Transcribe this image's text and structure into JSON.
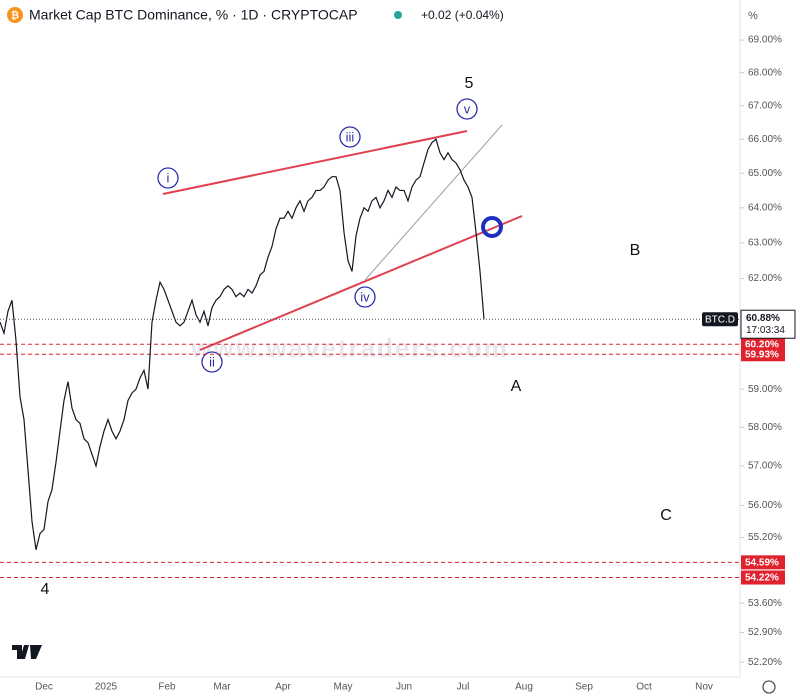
{
  "chart_data": {
    "type": "line",
    "title": "Market Cap BTC Dominance, % · 1D · CRYPTOCAP",
    "change": "+0.02 (+0.04%)",
    "unit": "%",
    "log": true,
    "ylim": [
      51.9,
      69.5
    ],
    "yticks": [
      {
        "value": 52.2,
        "label": "52.20%"
      },
      {
        "value": 52.9,
        "label": "52.90%"
      },
      {
        "value": 53.6,
        "label": "53.60%"
      },
      {
        "value": 55.2,
        "label": "55.20%"
      },
      {
        "value": 56,
        "label": "56.00%"
      },
      {
        "value": 57,
        "label": "57.00%"
      },
      {
        "value": 58,
        "label": "58.00%"
      },
      {
        "value": 59,
        "label": "59.00%"
      },
      {
        "value": 62,
        "label": "62.00%"
      },
      {
        "value": 63,
        "label": "63.00%"
      },
      {
        "value": 64,
        "label": "64.00%"
      },
      {
        "value": 65,
        "label": "65.00%"
      },
      {
        "value": 66,
        "label": "66.00%"
      },
      {
        "value": 67,
        "label": "67.00%"
      },
      {
        "value": 68,
        "label": "68.00%"
      },
      {
        "value": 69,
        "label": "69.00%"
      }
    ],
    "xlabels": [
      "Dec",
      "2025",
      "Feb",
      "Mar",
      "Apr",
      "May",
      "Jun",
      "Jul",
      "Aug",
      "Sep",
      "Oct",
      "Nov"
    ],
    "series": [
      {
        "name": "BTC.D",
        "color": "#131722",
        "values": [
          60.8,
          60.5,
          61.1,
          61.4,
          60.3,
          58.8,
          58.2,
          56.9,
          55.6,
          54.9,
          55.3,
          55.4,
          56.1,
          56.4,
          57.1,
          57.9,
          58.7,
          59.2,
          58.5,
          58.2,
          58.1,
          57.7,
          57.6,
          57.3,
          57.0,
          57.5,
          57.9,
          58.2,
          57.9,
          57.7,
          57.9,
          58.2,
          58.7,
          58.9,
          59.0,
          59.3,
          59.5,
          59.0,
          60.8,
          61.4,
          61.9,
          61.7,
          61.4,
          61.1,
          60.8,
          60.7,
          60.8,
          61.1,
          61.4,
          61.0,
          60.8,
          61.1,
          60.7,
          61.2,
          61.4,
          61.5,
          61.7,
          61.8,
          61.7,
          61.5,
          61.6,
          61.5,
          61.7,
          61.6,
          61.8,
          62.1,
          62.2,
          62.6,
          62.9,
          63.4,
          63.7,
          63.7,
          63.9,
          63.7,
          64.0,
          64.2,
          63.9,
          64.2,
          64.3,
          64.5,
          64.5,
          64.6,
          64.8,
          64.9,
          64.9,
          64.5,
          63.3,
          62.5,
          62.2,
          63.2,
          63.7,
          64.0,
          63.9,
          64.2,
          64.3,
          64.0,
          64.2,
          64.5,
          64.3,
          64.6,
          64.5,
          64.5,
          64.2,
          64.6,
          64.8,
          64.9,
          65.3,
          65.7,
          65.9,
          66.0,
          65.6,
          65.4,
          65.6,
          65.4,
          65.3,
          65.1,
          64.8,
          64.6,
          64.3,
          63.3,
          62.2,
          60.88
        ]
      }
    ],
    "last": {
      "symbol": "BTC.D",
      "price": {
        "value": 60.88,
        "label": "60.88%"
      },
      "countdown": "17:03:34"
    },
    "levels": [
      {
        "value": 60.2,
        "label": "60.20%"
      },
      {
        "value": 59.93,
        "label": "59.93%"
      },
      {
        "value": 54.59,
        "label": "54.59%"
      },
      {
        "value": 54.22,
        "label": "54.22%"
      }
    ],
    "level_color": "#e0212e",
    "waves": [
      "i",
      "ii",
      "iii",
      "iv",
      "v"
    ],
    "wave_marks": [
      "5",
      "4",
      "A",
      "B",
      "C"
    ],
    "watermark": "www.wavetraders.com"
  }
}
